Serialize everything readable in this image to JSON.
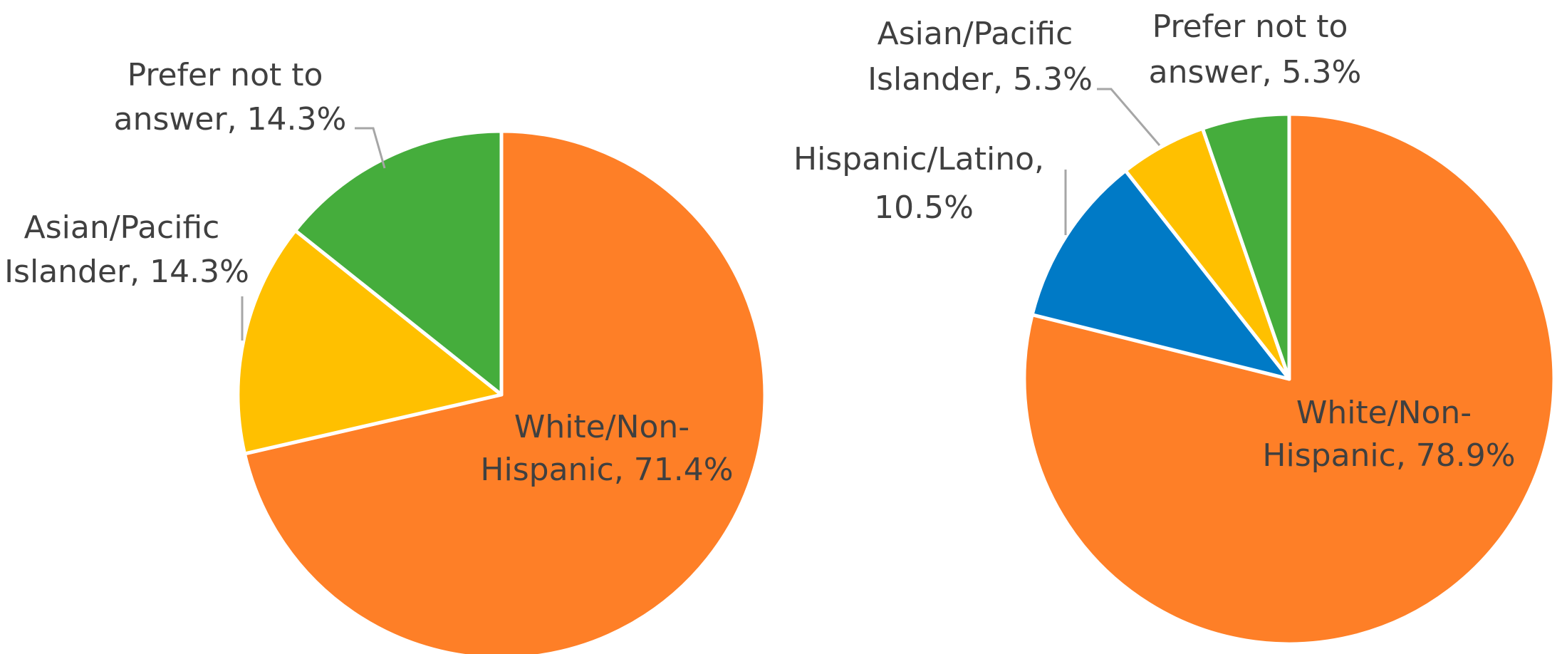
{
  "chart_data": [
    {
      "type": "pie",
      "title": "",
      "slices": [
        {
          "label": "White/Non-Hispanic",
          "value": 71.4,
          "display": "71.4%",
          "color": "#fe7f27"
        },
        {
          "label": "Asian/Pacific Islander",
          "value": 14.3,
          "display": "14.3%",
          "color": "#ffc000"
        },
        {
          "label": "Prefer not to answer",
          "value": 14.3,
          "display": "14.3%",
          "color": "#45ad3c"
        }
      ],
      "start_angle_deg": 0,
      "direction": "clockwise",
      "legend": "none",
      "data_labels": {
        "white": [
          "White/Non-",
          "Hispanic, 71.4%"
        ],
        "asian": [
          "Asian/Pacific",
          "Islander, 14.3%"
        ],
        "prefer": [
          "Prefer not to",
          "answer, 14.3%"
        ]
      }
    },
    {
      "type": "pie",
      "title": "",
      "slices": [
        {
          "label": "White/Non-Hispanic",
          "value": 78.9,
          "display": "78.9%",
          "color": "#fe7f27"
        },
        {
          "label": "Hispanic/Latino",
          "value": 10.5,
          "display": "10.5%",
          "color": "#007ac6"
        },
        {
          "label": "Asian/Pacific Islander",
          "value": 5.3,
          "display": "5.3%",
          "color": "#ffc000"
        },
        {
          "label": "Prefer not to answer",
          "value": 5.3,
          "display": "5.3%",
          "color": "#45ad3c"
        }
      ],
      "start_angle_deg": 0,
      "direction": "clockwise",
      "legend": "none",
      "data_labels": {
        "white": [
          "White/Non-",
          "Hispanic, 78.9%"
        ],
        "hispanic": [
          "Hispanic/Latino,",
          "10.5%"
        ],
        "asian": [
          "Asian/Pacific",
          "Islander, 5.3%"
        ],
        "prefer": [
          "Prefer not to",
          "answer, 5.3%"
        ]
      }
    }
  ]
}
